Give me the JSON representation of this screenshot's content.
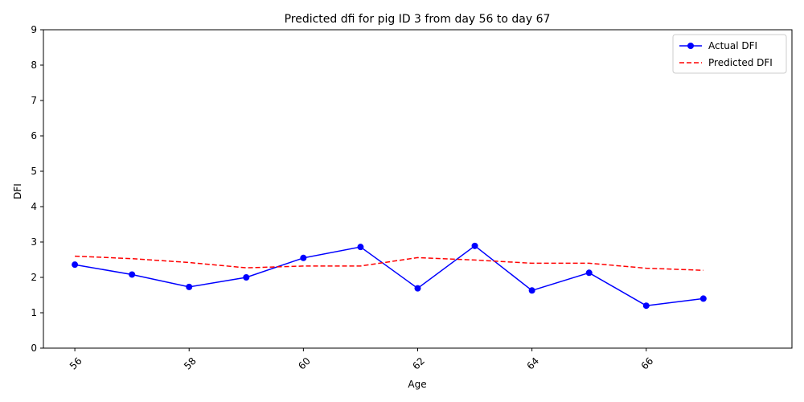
{
  "chart_data": {
    "type": "line",
    "title": "Predicted dfi for pig ID 3 from day 56 to day 67",
    "xlabel": "Age",
    "ylabel": "DFI",
    "x": [
      56,
      57,
      58,
      59,
      60,
      61,
      62,
      63,
      64,
      65,
      66,
      67
    ],
    "xlim": [
      55.45,
      68.55
    ],
    "ylim": [
      0,
      9
    ],
    "xticks": [
      56,
      58,
      60,
      62,
      64,
      66
    ],
    "yticks": [
      0,
      1,
      2,
      3,
      4,
      5,
      6,
      7,
      8,
      9
    ],
    "grid": false,
    "legend_position": "top-right",
    "series": [
      {
        "name": "Actual DFI",
        "style": "solid-with-markers",
        "color": "#0000ff",
        "values": [
          2.36,
          2.08,
          1.73,
          2.0,
          2.55,
          2.86,
          1.69,
          2.89,
          1.63,
          2.13,
          1.2,
          1.4
        ]
      },
      {
        "name": "Predicted DFI",
        "style": "dashed",
        "color": "#ff0000",
        "values": [
          2.6,
          2.53,
          2.42,
          2.27,
          2.32,
          2.32,
          2.56,
          2.49,
          2.4,
          2.4,
          2.26,
          2.2
        ]
      }
    ]
  }
}
